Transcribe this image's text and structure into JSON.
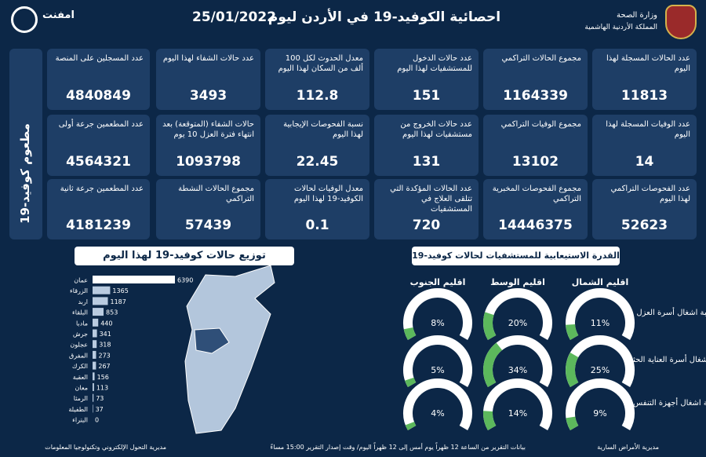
{
  "header": {
    "title": "احصائية الكوفيد-19 في الأردن ليوم",
    "date": "25/01/2022",
    "ministry": "وزارة الصحة",
    "kingdom": "المملكة الأردنية الهاشمية",
    "logo_text": "امفنت"
  },
  "stats": [
    [
      {
        "label": "عدد الحالات المسجلة لهذا اليوم",
        "value": 11813
      },
      {
        "label": "مجموع الحالات التراكمي",
        "value": 1164339
      },
      {
        "label": "عدد حالات الدخول للمستشفيات لهذا اليوم",
        "value": 151
      },
      {
        "label": "معدل الحدوث لكل 100 ألف من السكان لهذا اليوم",
        "value": 112.8
      },
      {
        "label": "عدد حالات الشفاء لهذا اليوم",
        "value": 3493
      },
      {
        "label": "عدد المسجلين على المنصة",
        "value": 4840849
      }
    ],
    [
      {
        "label": "عدد الوفيات المسجلة لهذا اليوم",
        "value": 14
      },
      {
        "label": "مجموع الوفيات التراكمي",
        "value": 13102
      },
      {
        "label": "عدد حالات الخروج من مستشفيات لهذا اليوم",
        "value": 131
      },
      {
        "label": "نسبة الفحوصات الإيجابية لهذا اليوم",
        "value": 22.45
      },
      {
        "label": "حالات الشفاء (المتوقعة) بعد انتهاء فترة العزل 10 يوم",
        "value": 1093798
      },
      {
        "label": "عدد المطعمين جرعة أولى",
        "value": 4564321
      }
    ],
    [
      {
        "label": "عدد الفحوصات التراكمي لهذا اليوم",
        "value": 52623
      },
      {
        "label": "مجموع الفحوصات المخبرية التراكمي",
        "value": 14446375
      },
      {
        "label": "عدد الحالات المؤكدة التي تتلقى العلاج في المستشفيات",
        "value": 720
      },
      {
        "label": "معدل الوفيات لحالات الكوفيد-19 لهذا اليوم",
        "value": 0.1
      },
      {
        "label": "مجموع الحالات النشطة التراكمي",
        "value": 57439
      },
      {
        "label": "عدد المطعمين جرعة ثانية",
        "value": 4181239
      }
    ]
  ],
  "vaccine_label": "مطعوم كوفيد-19",
  "chart_data": [
    {
      "type": "bar",
      "title": "توزيع حالات كوفيد-19 لهذا اليوم",
      "categories": [
        "عمان",
        "الزرقاء",
        "اربد",
        "البلقاء",
        "مادبا",
        "جرش",
        "عجلون",
        "المفرق",
        "الكرك",
        "العقبة",
        "معان",
        "الرمثا",
        "الطفيلة",
        "البتراء"
      ],
      "values": [
        6390,
        1365,
        1187,
        853,
        440,
        341,
        318,
        273,
        267,
        156,
        113,
        73,
        37,
        0
      ],
      "color": "#b9cbe0"
    },
    {
      "type": "gauge",
      "title": "القدرة الاستيعابية للمستشفيات لحالات كوفيد-19",
      "categories": [
        "نسبة اشغال أسرة العزل",
        "نسبة اشغال أسرة العناية الحثيثة",
        "نسبة اشغال أجهزة التنفس"
      ],
      "color": "#5cb85c",
      "series": [
        {
          "name": "اقليم الشمال",
          "values": [
            11,
            25,
            9
          ],
          "value_labels": [
            "11%",
            "25%",
            "9%"
          ]
        },
        {
          "name": "اقليم الوسط",
          "values": [
            20,
            34,
            14
          ],
          "value_labels": [
            "20%",
            "34%",
            "14%"
          ]
        },
        {
          "name": "اقليم الجنوب",
          "values": [
            8,
            5,
            4
          ],
          "value_labels": [
            "8%",
            "5%",
            "4%"
          ]
        }
      ]
    }
  ],
  "footer": {
    "right": "مديرية الأمراض السارية",
    "center": "بيانات التقرير من الساعة 12 ظهراً يوم أمس إلى 12 ظهراً اليوم/ وقت إصدار التقرير 15:00 مساءً",
    "left": "مديرية التحول الإلكتروني وتكنولوجيا المعلومات"
  }
}
